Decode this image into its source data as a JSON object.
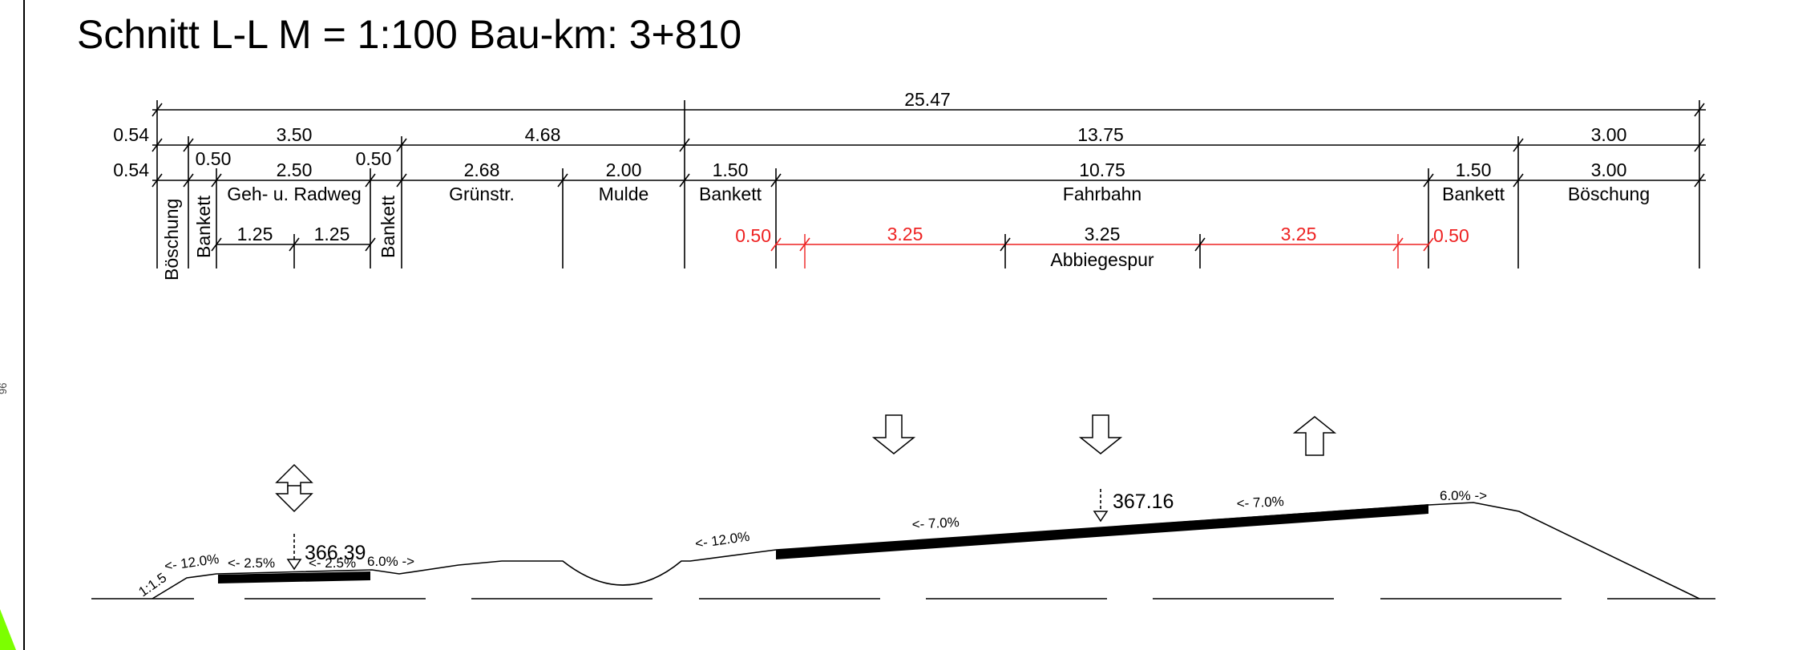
{
  "title": "Schnitt L-L  M = 1:100 Bau-km: 3+810",
  "margin_mark": "96",
  "dimensions": {
    "total": "25.47",
    "row1": {
      "left_width": "0.54",
      "seg1": "3.50",
      "seg2": "4.68",
      "seg3": "13.75",
      "seg4": "3.00"
    },
    "row2": {
      "left_width": "0.54",
      "bankett_left": "0.50",
      "gehweg": "2.50",
      "bankett_right": "0.50",
      "gruenstr": "2.68",
      "mulde": "2.00",
      "bankett_a": "1.50",
      "fahrbahn": "10.75",
      "bankett_b": "1.50",
      "boeschung": "3.00"
    },
    "row3": {
      "g1": "1.25",
      "g2": "1.25"
    },
    "lanes": {
      "edge_left": "0.50",
      "lane1": "3.25",
      "lane2": "3.25",
      "lane3": "3.25",
      "edge_right": "0.50"
    }
  },
  "labels": {
    "boeschung_vertical": "Böschung",
    "bankett_vertical": "Bankett",
    "gehweg": "Geh- u. Radweg",
    "gruenstr": "Grünstr.",
    "mulde": "Mulde",
    "bankett": "Bankett",
    "fahrbahn": "Fahrbahn",
    "boeschung": "Böschung",
    "abbiegespur": "Abbiegespur"
  },
  "profile": {
    "slope_embankment": "1:1.5",
    "slope_12_left": "<- 12.0%",
    "slope_2_5_a": "<- 2.5%",
    "slope_2_5_b": "<- 2.5%",
    "slope_6_left": "6.0% ->",
    "slope_12_mid": "<- 12.0%",
    "slope_7_a": "<- 7.0%",
    "slope_7_b": "<- 7.0%",
    "slope_6_right": "6.0% ->",
    "elevation_left": "366.39",
    "elevation_right": "367.16"
  },
  "colors": {
    "ink": "#000000",
    "accent_red": "#ee2222",
    "green_marker": "#7cff00"
  }
}
